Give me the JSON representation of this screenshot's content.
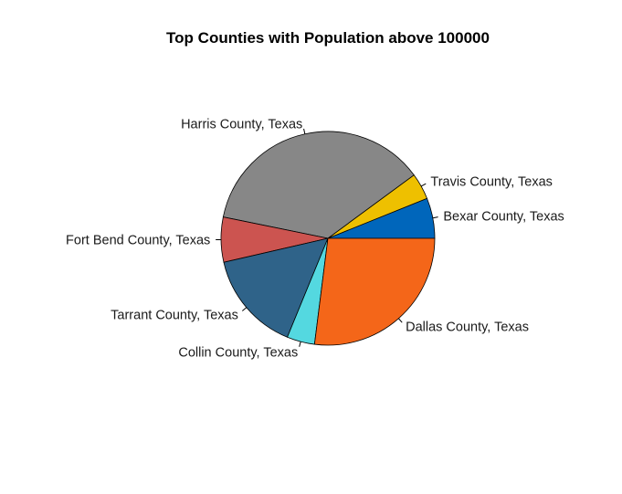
{
  "chart_data": {
    "type": "pie",
    "title": "Top Counties with Population above 100000",
    "categories": [
      "Bexar County, Texas",
      "Travis County, Texas",
      "Harris County, Texas",
      "Fort Bend County, Texas",
      "Tarrant County, Texas",
      "Collin County, Texas",
      "Dallas County, Texas"
    ],
    "values": [
      6.1,
      4.0,
      36.7,
      6.8,
      15.2,
      4.2,
      27.0
    ],
    "colors": [
      "#0066BB",
      "#EEC000",
      "#878787",
      "#CC5450",
      "#2F6389",
      "#54D8E0",
      "#F46619"
    ],
    "start_angle_deg": 0,
    "direction": "counterclockwise",
    "legend": "none"
  }
}
